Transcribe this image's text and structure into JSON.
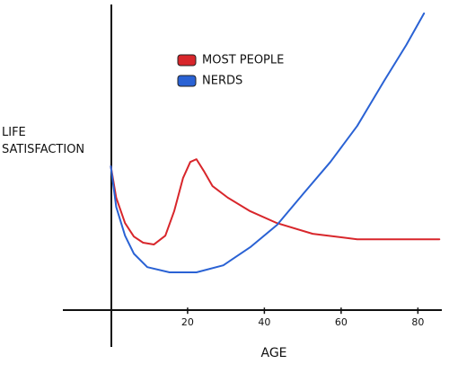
{
  "chart_data": {
    "type": "line",
    "xlabel": "AGE",
    "ylabel": "LIFE SATISFACTION",
    "xlim": [
      -12.5,
      86
    ],
    "ylim": [
      -12,
      100
    ],
    "xticks": [
      20,
      40,
      60,
      80
    ],
    "grid": false,
    "legend": "top-center",
    "series": [
      {
        "name": "MOST PEOPLE",
        "color": "#d8262b",
        "x": [
          0,
          1.4,
          3.7,
          6.0,
          8.4,
          11.2,
          14.2,
          16.5,
          18.8,
          20.7,
          22.3,
          24.2,
          26.5,
          30.5,
          36.3,
          43.3,
          52.6,
          64.2,
          75.8,
          85.6
        ],
        "values": [
          47.1,
          36.8,
          28.5,
          24.1,
          22.1,
          21.5,
          24.4,
          32.4,
          43.2,
          48.5,
          49.4,
          45.6,
          40.6,
          36.8,
          32.4,
          28.5,
          25.0,
          23.2,
          23.2,
          23.2
        ]
      },
      {
        "name": "NERDS",
        "color": "#2a62d4",
        "x": [
          0,
          1.4,
          3.7,
          6.0,
          9.5,
          15.3,
          22.3,
          29.3,
          36.3,
          43.3,
          50.2,
          57.2,
          64.2,
          71.2,
          77.0,
          81.6
        ],
        "values": [
          47.1,
          33.8,
          24.4,
          18.5,
          14.1,
          12.4,
          12.4,
          14.7,
          20.6,
          27.9,
          38.2,
          48.5,
          60.3,
          75.0,
          86.8,
          97.1
        ]
      }
    ]
  }
}
